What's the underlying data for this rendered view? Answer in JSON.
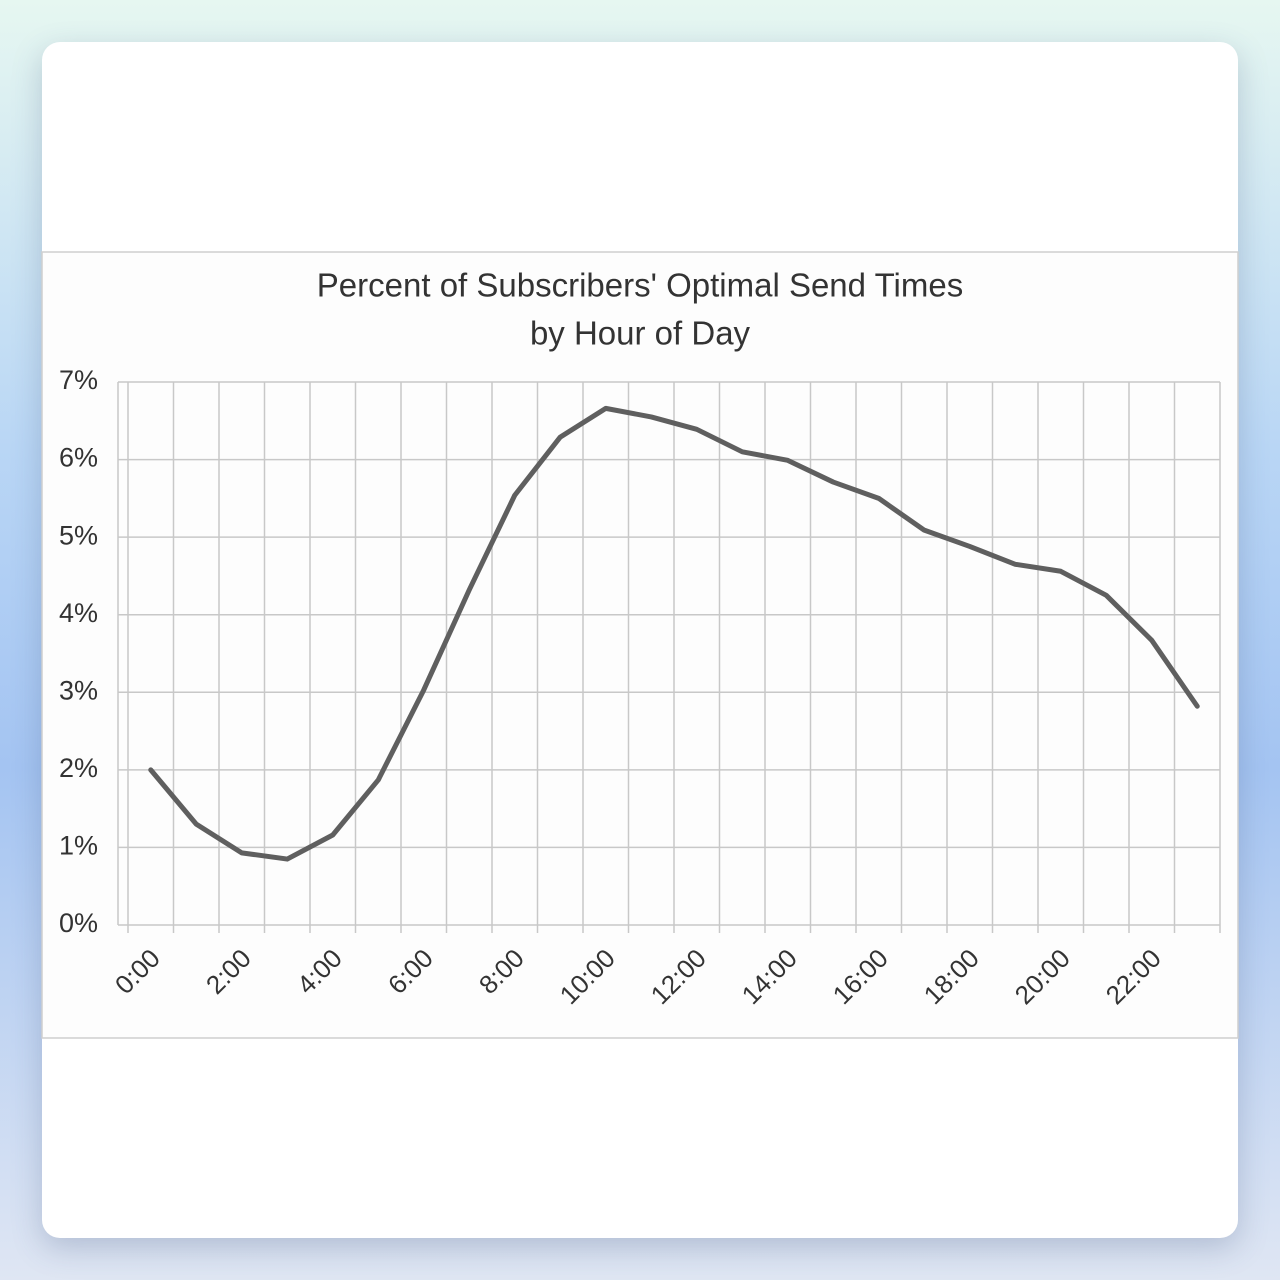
{
  "chart_data": {
    "type": "line",
    "title": "Percent of Subscribers' Optimal Send Times",
    "subtitle": "by Hour of Day",
    "categories": [
      "0:00",
      null,
      "2:00",
      null,
      "4:00",
      null,
      "6:00",
      null,
      "8:00",
      null,
      "10:00",
      null,
      "12:00",
      null,
      "14:00",
      null,
      "16:00",
      null,
      "18:00",
      null,
      "20:00",
      null,
      "22:00",
      null
    ],
    "values": [
      2.0,
      1.3,
      0.93,
      0.85,
      1.16,
      1.87,
      3.03,
      4.32,
      5.54,
      6.29,
      6.66,
      6.55,
      6.39,
      6.1,
      5.99,
      5.71,
      5.5,
      5.09,
      4.88,
      4.65,
      4.56,
      4.25,
      3.67,
      2.82
    ],
    "color": "#5f5f5f",
    "ylim": [
      0,
      7
    ],
    "yticks": [
      {
        "value": 0,
        "label": "0%"
      },
      {
        "value": 1,
        "label": "1%"
      },
      {
        "value": 2,
        "label": "2%"
      },
      {
        "value": 3,
        "label": "3%"
      },
      {
        "value": 4,
        "label": "4%"
      },
      {
        "value": 5,
        "label": "5%"
      },
      {
        "value": 6,
        "label": "6%"
      },
      {
        "value": 7,
        "label": "7%"
      }
    ],
    "grid": true
  }
}
